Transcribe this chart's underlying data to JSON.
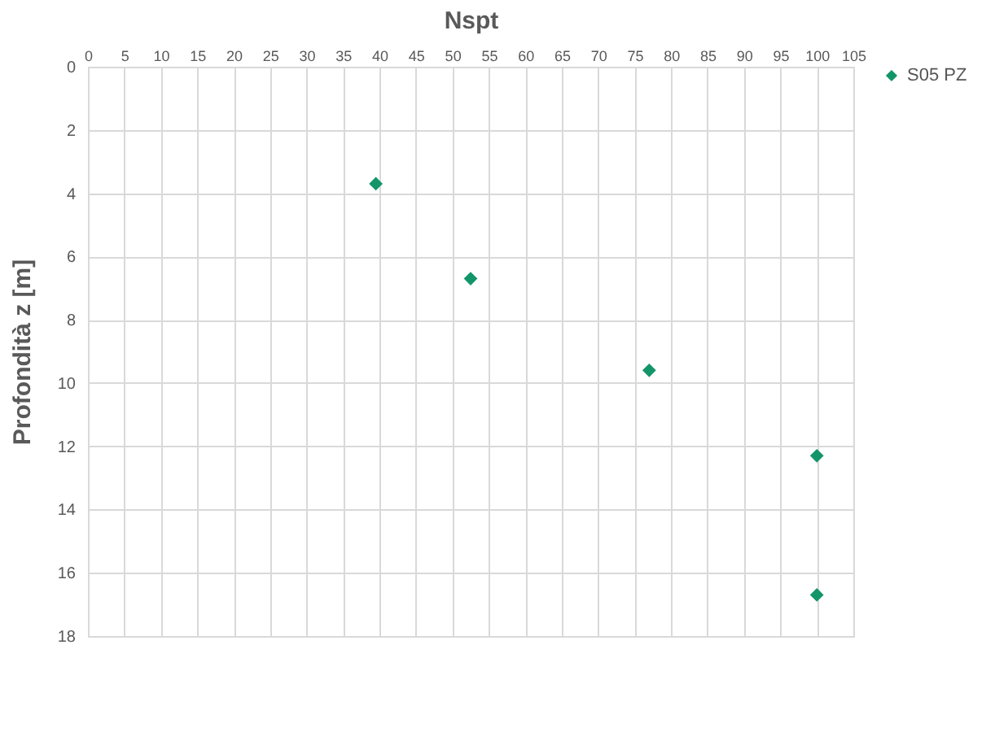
{
  "chart_data": {
    "type": "scatter",
    "xlabel": "Nspt",
    "ylabel": "Profondità z [m]",
    "xlim": [
      0,
      105
    ],
    "xticks": [
      0,
      5,
      10,
      15,
      20,
      25,
      30,
      35,
      40,
      45,
      50,
      55,
      60,
      65,
      70,
      75,
      80,
      85,
      90,
      95,
      100,
      105
    ],
    "ylim": [
      18,
      0
    ],
    "yticks": [
      0,
      2,
      4,
      6,
      8,
      10,
      12,
      14,
      16,
      18
    ],
    "series": [
      {
        "name": "S05 PZ",
        "color": "#13956a",
        "x": [
          39.5,
          52.5,
          77,
          100,
          100
        ],
        "values": [
          3.7,
          6.7,
          9.6,
          12.3,
          16.7
        ]
      }
    ],
    "marker": "diamond",
    "grid": true,
    "legend": "right"
  }
}
